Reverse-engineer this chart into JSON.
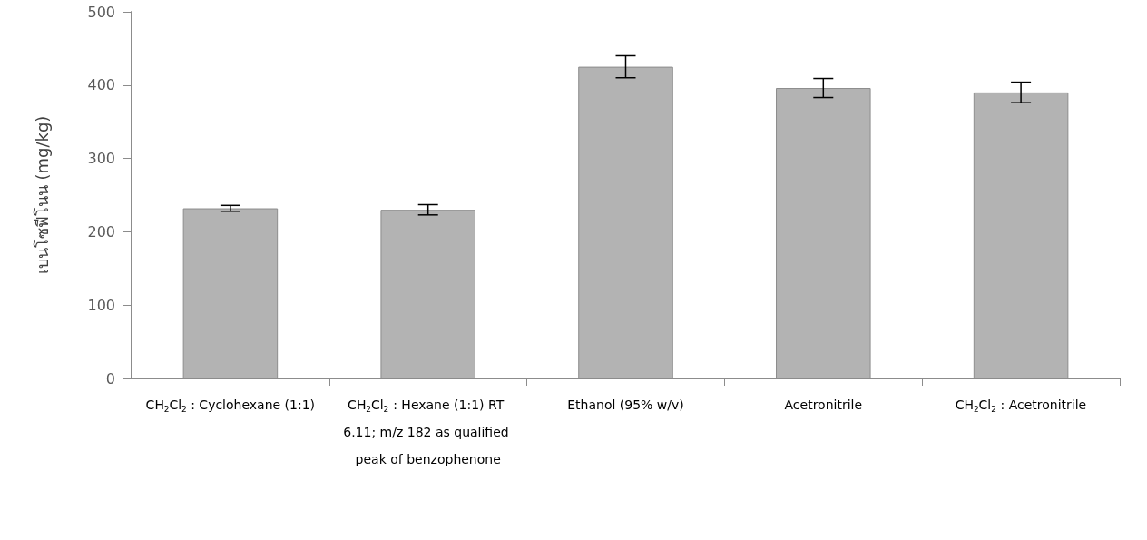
{
  "chart_data": {
    "type": "bar",
    "ylabel": "เบนโซฟีโนน (mg/kg)",
    "categories": [
      "CH$_{2}$Cl$_{2}$ : Cyclohexane (1:1)",
      "CH$_{2}$Cl$_{2}$ : Hexane (1:1) RT 6.11; m/z 182 as qualified peak of benzophenone",
      "Ethanol (95% w/v)",
      "Acetronitrile",
      "CH$_{2}$Cl$_{2}$ : Acetronitrile"
    ],
    "values": [
      232,
      230,
      425,
      396,
      390
    ],
    "errors": [
      4,
      7,
      15,
      13,
      14
    ],
    "color": "#b3b3b3",
    "ylim": [
      0,
      500
    ],
    "yticks": [
      0,
      100,
      200,
      300,
      400,
      500
    ],
    "grid": false
  }
}
